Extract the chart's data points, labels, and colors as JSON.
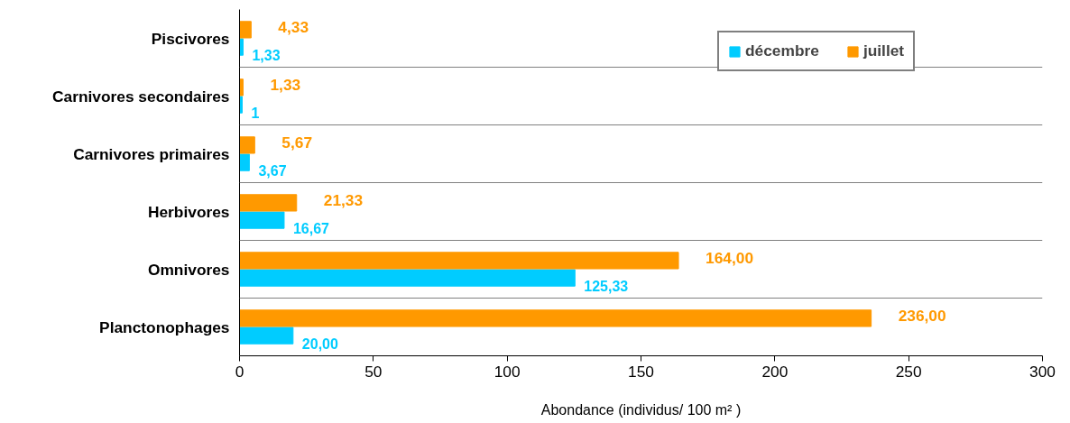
{
  "chart_data": {
    "type": "bar",
    "orientation": "horizontal",
    "xlabel": "Abondance (individus/ 100 m² )",
    "categories": [
      "Piscivores",
      "Carnivores secondaires",
      "Carnivores primaires",
      "Herbivores",
      "Omnivores",
      "Planctonophages"
    ],
    "series": [
      {
        "name": "décembre",
        "color": "#00ccff",
        "values": [
          1.33,
          1,
          3.67,
          16.67,
          125.33,
          20
        ],
        "value_labels": [
          "1,33",
          "1",
          "3,67",
          "16,67",
          "125,33",
          "20,00"
        ]
      },
      {
        "name": "juillet",
        "color": "#ff9900",
        "values": [
          4.33,
          1.33,
          5.67,
          21.33,
          164,
          236
        ],
        "value_labels": [
          "4,33",
          "1,33",
          "5,67",
          "21,33",
          "164,00",
          "236,00"
        ]
      }
    ],
    "xlim": [
      0,
      300
    ],
    "xticks": [
      0,
      50,
      100,
      150,
      200,
      250,
      300
    ],
    "grid": "y",
    "legend": "top right"
  }
}
